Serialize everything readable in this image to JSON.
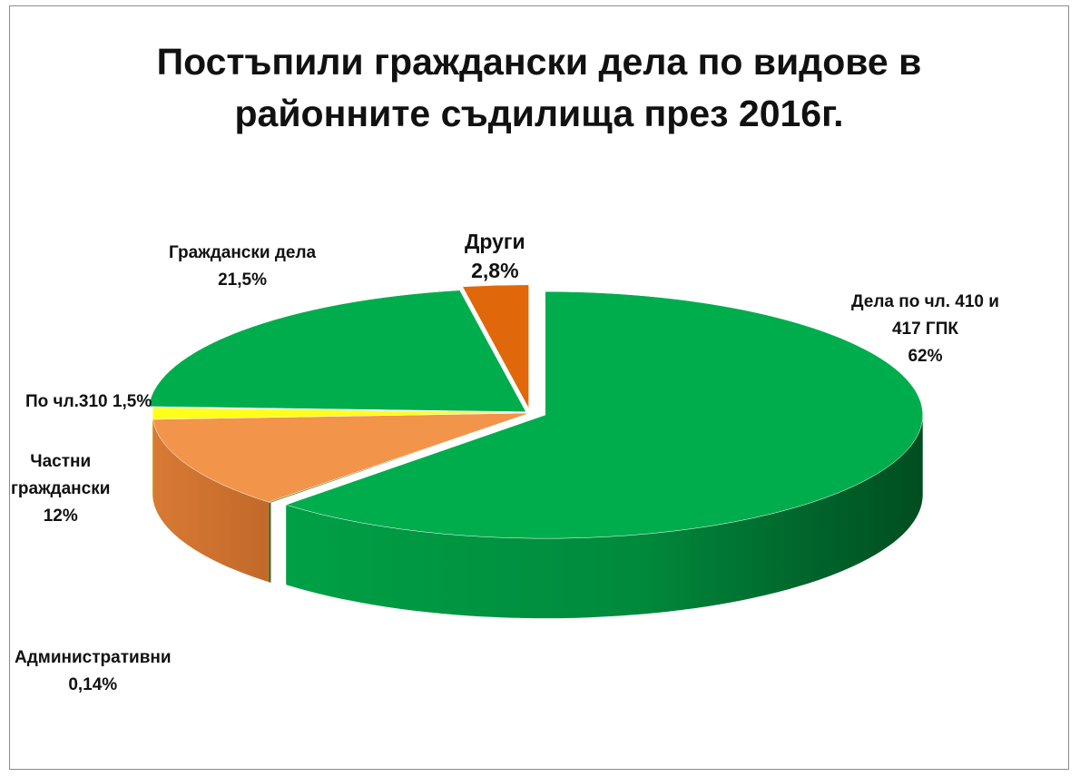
{
  "chart_data": {
    "type": "pie",
    "title_lines": [
      "Постъпили граждански дела по видове в",
      "районните съдилища през 2016г."
    ],
    "slices": [
      {
        "label_lines": [
          "Дела по чл. 410 и",
          "417 ГПК",
          "62%"
        ],
        "value": 62,
        "color": "#00ad4d"
      },
      {
        "label_lines": [
          "Административни",
          "0,14%"
        ],
        "value": 0.14,
        "color": "#6e8a3c"
      },
      {
        "label_lines": [
          "Частни",
          "граждански",
          "12%"
        ],
        "value": 12,
        "color": "#f2944a"
      },
      {
        "label_lines": [
          "По чл.310 1,5%"
        ],
        "value": 1.5,
        "color": "#ffff1a"
      },
      {
        "label_lines": [
          "Граждански дела",
          "21,5%"
        ],
        "value": 21.5,
        "color": "#00ad4d"
      },
      {
        "label_lines": [
          "Други",
          "2,8%"
        ],
        "value": 2.8,
        "color": "#e0680a"
      }
    ],
    "three_d": true,
    "legend": "none"
  }
}
